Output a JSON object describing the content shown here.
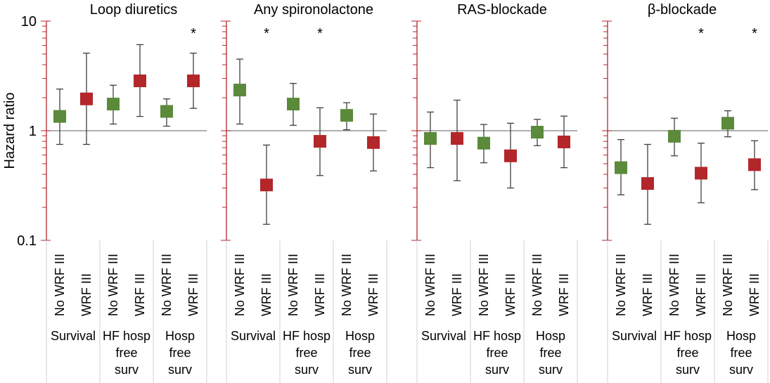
{
  "colors": {
    "no_wrf_marker": "#5b8a3a",
    "wrf_marker": "#b3262a",
    "axis": "#b3262a",
    "error_bar": "#404040",
    "reference_line": "#7f7f7f",
    "divider": "#d0d0d0",
    "text": "#000000"
  },
  "chart_data": {
    "type": "scatter",
    "ylabel": "Hazard ratio",
    "yscale": "log",
    "ylim": [
      0.1,
      10
    ],
    "yticks": [
      "10",
      "1",
      "0.1"
    ],
    "reference_line": 1,
    "marker_labels": [
      "No WRF III",
      "WRF III"
    ],
    "group_labels": [
      [
        "Survival"
      ],
      [
        "HF hosp",
        "free",
        "surv"
      ],
      [
        "Hosp",
        "free",
        "surv"
      ]
    ],
    "panels": [
      {
        "title": "Loop diuretics",
        "points": [
          {
            "group": 0,
            "label": "No WRF III",
            "value": 1.35,
            "lower": 0.75,
            "upper": 2.4,
            "significant": false
          },
          {
            "group": 0,
            "label": "WRF III",
            "value": 1.95,
            "lower": 0.75,
            "upper": 5.1,
            "significant": false
          },
          {
            "group": 1,
            "label": "No WRF III",
            "value": 1.75,
            "lower": 1.15,
            "upper": 2.6,
            "significant": false
          },
          {
            "group": 1,
            "label": "WRF III",
            "value": 2.85,
            "lower": 1.35,
            "upper": 6.1,
            "significant": false
          },
          {
            "group": 2,
            "label": "No WRF III",
            "value": 1.5,
            "lower": 1.1,
            "upper": 1.95,
            "significant": false
          },
          {
            "group": 2,
            "label": "WRF III",
            "value": 2.85,
            "lower": 1.6,
            "upper": 5.1,
            "significant": true
          }
        ]
      },
      {
        "title": "Any spironolactone",
        "points": [
          {
            "group": 0,
            "label": "No WRF III",
            "value": 2.35,
            "lower": 1.15,
            "upper": 4.5,
            "significant": false
          },
          {
            "group": 0,
            "label": "WRF III",
            "value": 0.32,
            "lower": 0.14,
            "upper": 0.74,
            "significant": true
          },
          {
            "group": 1,
            "label": "No WRF III",
            "value": 1.75,
            "lower": 1.12,
            "upper": 2.7,
            "significant": false
          },
          {
            "group": 1,
            "label": "WRF III",
            "value": 0.8,
            "lower": 0.39,
            "upper": 1.62,
            "significant": true
          },
          {
            "group": 2,
            "label": "No WRF III",
            "value": 1.38,
            "lower": 1.02,
            "upper": 1.8,
            "significant": false
          },
          {
            "group": 2,
            "label": "WRF III",
            "value": 0.78,
            "lower": 0.43,
            "upper": 1.42,
            "significant": false
          }
        ]
      },
      {
        "title": "RAS-blockade",
        "points": [
          {
            "group": 0,
            "label": "No WRF III",
            "value": 0.85,
            "lower": 0.46,
            "upper": 1.48,
            "significant": false
          },
          {
            "group": 0,
            "label": "WRF III",
            "value": 0.85,
            "lower": 0.35,
            "upper": 1.9,
            "significant": false
          },
          {
            "group": 1,
            "label": "No WRF III",
            "value": 0.77,
            "lower": 0.51,
            "upper": 1.14,
            "significant": false
          },
          {
            "group": 1,
            "label": "WRF III",
            "value": 0.59,
            "lower": 0.3,
            "upper": 1.17,
            "significant": false
          },
          {
            "group": 2,
            "label": "No WRF III",
            "value": 0.97,
            "lower": 0.73,
            "upper": 1.27,
            "significant": false
          },
          {
            "group": 2,
            "label": "WRF III",
            "value": 0.79,
            "lower": 0.46,
            "upper": 1.36,
            "significant": false
          }
        ]
      },
      {
        "title": "β-blockade",
        "points": [
          {
            "group": 0,
            "label": "No WRF III",
            "value": 0.46,
            "lower": 0.26,
            "upper": 0.83,
            "significant": false
          },
          {
            "group": 0,
            "label": "WRF III",
            "value": 0.33,
            "lower": 0.14,
            "upper": 0.75,
            "significant": false
          },
          {
            "group": 1,
            "label": "No WRF III",
            "value": 0.89,
            "lower": 0.59,
            "upper": 1.3,
            "significant": false
          },
          {
            "group": 1,
            "label": "WRF III",
            "value": 0.41,
            "lower": 0.22,
            "upper": 0.77,
            "significant": true
          },
          {
            "group": 2,
            "label": "No WRF III",
            "value": 1.17,
            "lower": 0.88,
            "upper": 1.52,
            "significant": false
          },
          {
            "group": 2,
            "label": "WRF III",
            "value": 0.49,
            "lower": 0.29,
            "upper": 0.81,
            "significant": true
          }
        ]
      }
    ]
  }
}
